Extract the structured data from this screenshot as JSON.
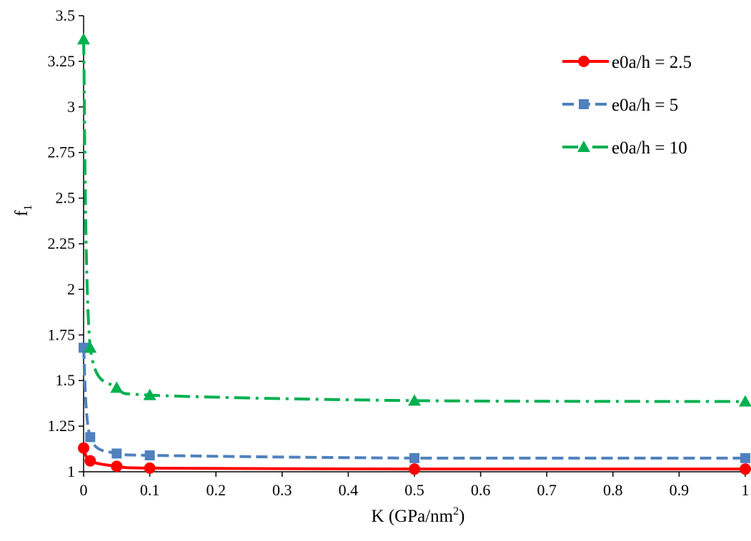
{
  "chart_data": {
    "type": "line",
    "title": "",
    "xlabel": "K (GPa/nm",
    "xlabel_sup": "2",
    "xlabel_end": ")",
    "ylabel": "f",
    "ylabel_sub": "1",
    "xlim": [
      0,
      1
    ],
    "ylim": [
      1,
      3.5
    ],
    "x_ticks": [
      "0",
      "0.1",
      "0.2",
      "0.3",
      "0.4",
      "0.5",
      "0.6",
      "0.7",
      "0.8",
      "0.9",
      "1"
    ],
    "y_ticks": [
      "1",
      "1.25",
      "1.5",
      "1.75",
      "2",
      "2.25",
      "2.5",
      "2.75",
      "3",
      "3.25",
      "3.5"
    ],
    "grid": false,
    "legend_position": "top-right",
    "x": [
      0,
      0.01,
      0.05,
      0.1,
      0.5,
      1
    ],
    "series": [
      {
        "name": "e0a/h = 2.5",
        "values": [
          1.13,
          1.06,
          1.03,
          1.02,
          1.015,
          1.015
        ],
        "color": "#ff0000",
        "dash": "solid",
        "marker": "circle"
      },
      {
        "name": "e0a/h = 5",
        "values": [
          1.68,
          1.19,
          1.1,
          1.09,
          1.075,
          1.075
        ],
        "color": "#4f81bd",
        "dash": "dashed",
        "marker": "square"
      },
      {
        "name": "e0a/h = 10",
        "values": [
          3.37,
          1.68,
          1.46,
          1.42,
          1.39,
          1.385
        ],
        "color": "#00b050",
        "dash": "dash-dot",
        "marker": "triangle"
      }
    ]
  }
}
